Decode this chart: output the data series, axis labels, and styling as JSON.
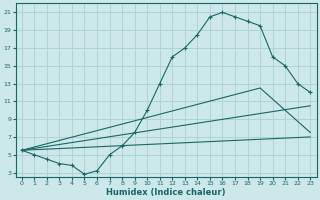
{
  "xlabel": "Humidex (Indice chaleur)",
  "ylabel": "",
  "xlim": [
    -0.5,
    23.5
  ],
  "ylim": [
    2.5,
    22
  ],
  "xticks": [
    0,
    1,
    2,
    3,
    4,
    5,
    6,
    7,
    8,
    9,
    10,
    11,
    12,
    13,
    14,
    15,
    16,
    17,
    18,
    19,
    20,
    21,
    22,
    23
  ],
  "yticks": [
    3,
    5,
    7,
    9,
    11,
    13,
    15,
    17,
    19,
    21
  ],
  "bg_color": "#cce8e8",
  "grid_color": "#b0d4d4",
  "line_color": "#1a6666",
  "line1_x": [
    0,
    1,
    2,
    3,
    4,
    5,
    6,
    7,
    8,
    9,
    10,
    11,
    12,
    13,
    14,
    15,
    16,
    17,
    18,
    19,
    20,
    21,
    22,
    23
  ],
  "line1_y": [
    5.5,
    5,
    4.5,
    4,
    3.8,
    2.8,
    3.2,
    5,
    6.0,
    7.5,
    10,
    13,
    16,
    17,
    18.5,
    20.5,
    21,
    20.5,
    20,
    19.5,
    16,
    15,
    13,
    12
  ],
  "line2_x": [
    0,
    23
  ],
  "line2_y": [
    5.5,
    7
  ],
  "line3_x": [
    0,
    23
  ],
  "line3_y": [
    5.5,
    10.5
  ],
  "line4_x": [
    0,
    19,
    23
  ],
  "line4_y": [
    5.5,
    12.5,
    7.5
  ]
}
